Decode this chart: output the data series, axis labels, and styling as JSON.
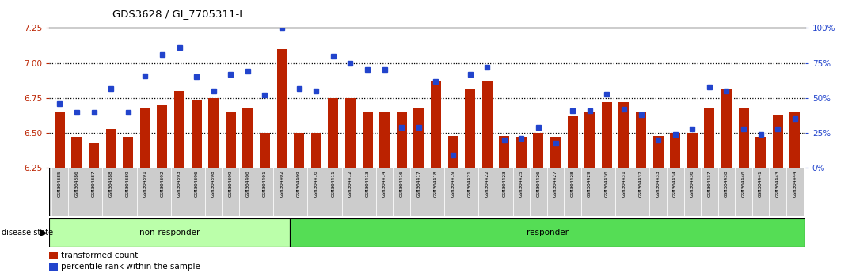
{
  "title": "GDS3628 / GI_7705311-I",
  "samples": [
    "GSM304385",
    "GSM304386",
    "GSM304387",
    "GSM304388",
    "GSM304389",
    "GSM304391",
    "GSM304392",
    "GSM304393",
    "GSM304396",
    "GSM304398",
    "GSM304399",
    "GSM304400",
    "GSM304401",
    "GSM304402",
    "GSM304409",
    "GSM304410",
    "GSM304411",
    "GSM304412",
    "GSM304413",
    "GSM304414",
    "GSM304416",
    "GSM304417",
    "GSM304418",
    "GSM304419",
    "GSM304421",
    "GSM304422",
    "GSM304423",
    "GSM304425",
    "GSM304426",
    "GSM304427",
    "GSM304428",
    "GSM304429",
    "GSM304430",
    "GSM304431",
    "GSM304432",
    "GSM304433",
    "GSM304434",
    "GSM304436",
    "GSM304437",
    "GSM304438",
    "GSM304440",
    "GSM304441",
    "GSM304443",
    "GSM304444"
  ],
  "transformed_count": [
    6.65,
    6.47,
    6.43,
    6.53,
    6.47,
    6.68,
    6.7,
    6.8,
    6.73,
    6.75,
    6.65,
    6.68,
    6.5,
    7.1,
    6.5,
    6.5,
    6.75,
    6.75,
    6.65,
    6.65,
    6.65,
    6.68,
    6.87,
    6.48,
    6.82,
    6.87,
    6.48,
    6.47,
    6.5,
    6.47,
    6.62,
    6.65,
    6.72,
    6.72,
    6.65,
    6.48,
    6.5,
    6.5,
    6.68,
    6.82,
    6.68,
    6.47,
    6.63,
    6.65
  ],
  "percentile_rank": [
    46,
    40,
    40,
    57,
    40,
    66,
    81,
    86,
    65,
    55,
    67,
    69,
    52,
    100,
    57,
    55,
    80,
    75,
    70,
    70,
    29,
    29,
    62,
    9,
    67,
    72,
    20,
    21,
    29,
    18,
    41,
    41,
    53,
    42,
    38,
    20,
    24,
    28,
    58,
    55,
    28,
    24,
    28,
    35
  ],
  "non_responder_count": 14,
  "ylim_left": [
    6.25,
    7.25
  ],
  "ylim_right": [
    0,
    100
  ],
  "yticks_left": [
    6.25,
    6.5,
    6.75,
    7.0,
    7.25
  ],
  "yticks_right": [
    0,
    25,
    50,
    75,
    100
  ],
  "bar_color": "#bb2200",
  "dot_color": "#2244cc",
  "non_responder_bg": "#bbffaa",
  "responder_bg": "#55dd55",
  "tick_label_bg": "#cccccc",
  "bar_width": 0.6
}
